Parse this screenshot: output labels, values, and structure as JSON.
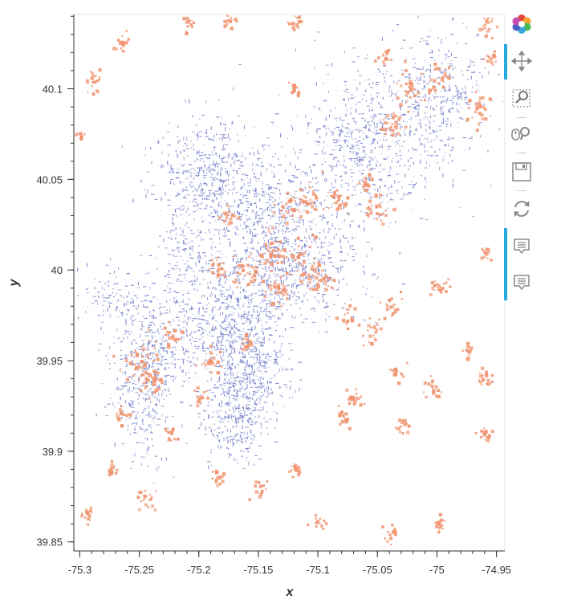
{
  "chart_data": {
    "type": "scatter",
    "title": "",
    "xlabel": "x",
    "ylabel": "y",
    "xlim": [
      -75.305,
      -74.943
    ],
    "ylim": [
      39.845,
      40.141
    ],
    "xticks": [
      -75.3,
      -75.25,
      -75.2,
      -75.15,
      -75.1,
      -75.05,
      -75,
      -74.95
    ],
    "xtick_labels": [
      "-75.3",
      "-75.25",
      "-75.2",
      "-75.15",
      "-75.1",
      "-75.05",
      "-75",
      "-74.95"
    ],
    "yticks": [
      39.85,
      39.9,
      39.95,
      40,
      40.05,
      40.1
    ],
    "ytick_labels": [
      "39.85",
      "39.9",
      "39.95",
      "40",
      "40.05",
      "40.1"
    ],
    "grid": false,
    "legend": "none",
    "series": [
      {
        "color": "#6f7ac8",
        "description_shape": "dense point cloud (city street network)",
        "regions": [
          {
            "x": -75.195,
            "y": 40.055,
            "rx": 0.04,
            "ry": 0.03,
            "density": 0.55
          },
          {
            "x": -75.15,
            "y": 40.03,
            "rx": 0.06,
            "ry": 0.04,
            "density": 0.55
          },
          {
            "x": -75.06,
            "y": 40.07,
            "rx": 0.05,
            "ry": 0.04,
            "density": 0.55
          },
          {
            "x": -75.0,
            "y": 40.095,
            "rx": 0.035,
            "ry": 0.035,
            "density": 0.55
          },
          {
            "x": -75.12,
            "y": 40.0,
            "rx": 0.05,
            "ry": 0.025,
            "density": 0.6
          },
          {
            "x": -75.17,
            "y": 39.97,
            "rx": 0.04,
            "ry": 0.03,
            "density": 0.8
          },
          {
            "x": -75.16,
            "y": 39.94,
            "rx": 0.03,
            "ry": 0.025,
            "density": 0.95
          },
          {
            "x": -75.17,
            "y": 39.915,
            "rx": 0.025,
            "ry": 0.02,
            "density": 0.85
          },
          {
            "x": -75.24,
            "y": 39.955,
            "rx": 0.035,
            "ry": 0.03,
            "density": 0.75
          },
          {
            "x": -75.25,
            "y": 39.92,
            "rx": 0.02,
            "ry": 0.03,
            "density": 0.45
          },
          {
            "x": -75.27,
            "y": 39.985,
            "rx": 0.03,
            "ry": 0.015,
            "density": 0.4
          },
          {
            "x": -75.215,
            "y": 40.0,
            "rx": 0.025,
            "ry": 0.02,
            "density": 0.45
          }
        ],
        "n_points": 4200,
        "seed": 11
      },
      {
        "color": "#f0906a",
        "description_shape": "scattered clusters",
        "clusters": [
          {
            "x": -75.29,
            "y": 40.104,
            "r": 0.004
          },
          {
            "x": -75.265,
            "y": 40.125,
            "r": 0.003
          },
          {
            "x": -75.21,
            "y": 40.138,
            "r": 0.003
          },
          {
            "x": -75.175,
            "y": 40.138,
            "r": 0.003
          },
          {
            "x": -75.12,
            "y": 40.138,
            "r": 0.003
          },
          {
            "x": -75.045,
            "y": 40.118,
            "r": 0.003
          },
          {
            "x": -74.96,
            "y": 40.135,
            "r": 0.004
          },
          {
            "x": -74.955,
            "y": 40.118,
            "r": 0.003
          },
          {
            "x": -75.025,
            "y": 40.101,
            "r": 0.006
          },
          {
            "x": -75.0,
            "y": 40.105,
            "r": 0.005
          },
          {
            "x": -75.035,
            "y": 40.08,
            "r": 0.006
          },
          {
            "x": -74.965,
            "y": 40.09,
            "r": 0.005
          },
          {
            "x": -75.06,
            "y": 40.05,
            "r": 0.004
          },
          {
            "x": -75.11,
            "y": 40.04,
            "r": 0.006
          },
          {
            "x": -75.085,
            "y": 40.04,
            "r": 0.005
          },
          {
            "x": -75.125,
            "y": 40.035,
            "r": 0.005
          },
          {
            "x": -75.14,
            "y": 40.01,
            "r": 0.007
          },
          {
            "x": -75.115,
            "y": 40.005,
            "r": 0.008
          },
          {
            "x": -75.1,
            "y": 39.995,
            "r": 0.006
          },
          {
            "x": -75.16,
            "y": 40.0,
            "r": 0.006
          },
          {
            "x": -75.135,
            "y": 39.99,
            "r": 0.006
          },
          {
            "x": -75.05,
            "y": 40.035,
            "r": 0.005
          },
          {
            "x": -75.175,
            "y": 40.03,
            "r": 0.004
          },
          {
            "x": -75.185,
            "y": 40.0,
            "r": 0.004
          },
          {
            "x": -75.25,
            "y": 39.95,
            "r": 0.008
          },
          {
            "x": -75.24,
            "y": 39.94,
            "r": 0.005
          },
          {
            "x": -75.19,
            "y": 39.95,
            "r": 0.004
          },
          {
            "x": -75.2,
            "y": 39.93,
            "r": 0.003
          },
          {
            "x": -75.225,
            "y": 39.965,
            "r": 0.004
          },
          {
            "x": -75.265,
            "y": 39.92,
            "r": 0.003
          },
          {
            "x": -75.275,
            "y": 39.89,
            "r": 0.003
          },
          {
            "x": -75.245,
            "y": 39.875,
            "r": 0.004
          },
          {
            "x": -75.185,
            "y": 39.885,
            "r": 0.003
          },
          {
            "x": -75.16,
            "y": 39.96,
            "r": 0.003
          },
          {
            "x": -75.15,
            "y": 39.88,
            "r": 0.003
          },
          {
            "x": -75.12,
            "y": 39.89,
            "r": 0.003
          },
          {
            "x": -75.08,
            "y": 39.92,
            "r": 0.003
          },
          {
            "x": -75.07,
            "y": 39.93,
            "r": 0.004
          },
          {
            "x": -75.075,
            "y": 39.975,
            "r": 0.004
          },
          {
            "x": -75.04,
            "y": 39.98,
            "r": 0.004
          },
          {
            "x": -75.055,
            "y": 39.965,
            "r": 0.004
          },
          {
            "x": -75.0,
            "y": 39.99,
            "r": 0.004
          },
          {
            "x": -74.975,
            "y": 39.955,
            "r": 0.003
          },
          {
            "x": -74.96,
            "y": 39.94,
            "r": 0.004
          },
          {
            "x": -75.005,
            "y": 39.935,
            "r": 0.004
          },
          {
            "x": -75.03,
            "y": 39.915,
            "r": 0.003
          },
          {
            "x": -74.96,
            "y": 39.91,
            "r": 0.003
          },
          {
            "x": -75.295,
            "y": 39.865,
            "r": 0.003
          },
          {
            "x": -75.225,
            "y": 39.91,
            "r": 0.003
          },
          {
            "x": -75.1,
            "y": 39.86,
            "r": 0.003
          },
          {
            "x": -75.04,
            "y": 39.855,
            "r": 0.003
          },
          {
            "x": -75.0,
            "y": 39.86,
            "r": 0.003
          },
          {
            "x": -75.3,
            "y": 40.075,
            "r": 0.002
          },
          {
            "x": -75.12,
            "y": 40.1,
            "r": 0.003
          },
          {
            "x": -74.96,
            "y": 40.01,
            "r": 0.003
          },
          {
            "x": -75.035,
            "y": 39.945,
            "r": 0.003
          }
        ],
        "n_points": 1100,
        "seed": 7
      }
    ]
  },
  "toolbar": {
    "logo": "bokeh-logo-icon",
    "tools": [
      {
        "name": "pan-tool",
        "icon": "pan-icon",
        "active": true
      },
      {
        "name": "box-zoom-tool",
        "icon": "box-zoom-icon",
        "active": false
      },
      {
        "name": "wheel-zoom-tool",
        "icon": "wheel-zoom-icon",
        "active": false
      },
      {
        "name": "save-tool",
        "icon": "save-icon",
        "active": false
      },
      {
        "name": "reset-tool",
        "icon": "reset-icon",
        "active": false
      },
      {
        "name": "hover-tool-1",
        "icon": "hover-icon",
        "active": true
      },
      {
        "name": "hover-tool-2",
        "icon": "hover-icon",
        "active": true
      }
    ],
    "accent_color": "#26aae1"
  }
}
